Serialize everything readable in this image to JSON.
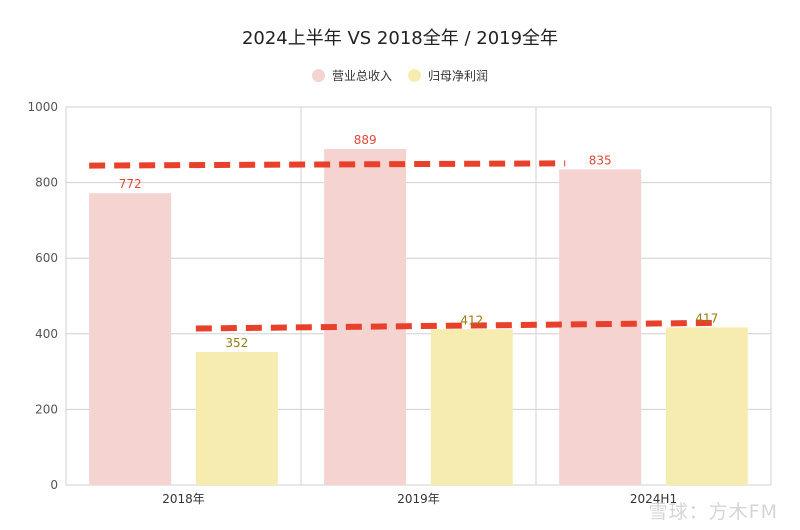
{
  "chart_data": {
    "type": "bar",
    "title": "2024上半年 VS 2018全年 / 2019全年",
    "categories": [
      "2018年",
      "2019年",
      "2024H1"
    ],
    "series": [
      {
        "name": "营业总收入",
        "values": [
          772,
          889,
          835
        ],
        "color": "#f5d3d1",
        "label_color": "#e04a3a"
      },
      {
        "name": "归母净利润",
        "values": [
          352,
          412,
          417
        ],
        "color": "#f7ecb0",
        "label_color": "#9a7a10"
      }
    ],
    "ylim": [
      0,
      1000
    ],
    "yticks": [
      0,
      200,
      400,
      600,
      800,
      1000
    ],
    "grid": true,
    "legend": "top-center",
    "annotations": [
      {
        "type": "dashed-line",
        "color": "#e8402a",
        "from": [
          "2018年",
          845
        ],
        "to": [
          "2024H1",
          851
        ]
      },
      {
        "type": "dashed-line",
        "color": "#e8402a",
        "from": [
          "2018年",
          414
        ],
        "to": [
          "2024H1",
          429
        ]
      }
    ]
  },
  "watermark": "雪球：方木FM"
}
